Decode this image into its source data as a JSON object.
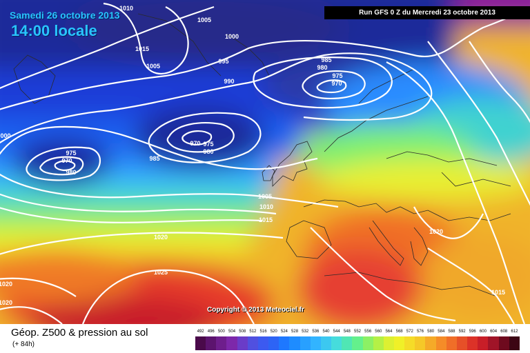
{
  "header": {
    "date_title": "Samedi 26 octobre 2013",
    "time_title": "14:00 locale",
    "run_info": "Run GFS 0 Z du Mercredi 23 octobre 2013"
  },
  "copyright": "Copyright © 2013 Meteociel.fr",
  "footer": {
    "product_title": "Géop. Z500 & pression au sol",
    "forecast_hour": "(+ 84h)"
  },
  "scale": {
    "labels": [
      "492",
      "496",
      "500",
      "504",
      "508",
      "512",
      "516",
      "520",
      "524",
      "528",
      "532",
      "536",
      "540",
      "544",
      "548",
      "552",
      "556",
      "560",
      "564",
      "568",
      "572",
      "576",
      "580",
      "584",
      "588",
      "592",
      "596",
      "600",
      "604",
      "608",
      "612"
    ],
    "colors": [
      "#4a0a4a",
      "#5c146e",
      "#6e1e8c",
      "#7d28aa",
      "#6a3cc8",
      "#5050e0",
      "#3c5af0",
      "#2d64f5",
      "#1e78ff",
      "#1e8cff",
      "#28a0ff",
      "#32b4ff",
      "#3cc8f0",
      "#46dcdc",
      "#50e6b4",
      "#64f08c",
      "#8cf064",
      "#b4f046",
      "#dcf032",
      "#f0f028",
      "#f5dc28",
      "#f5c828",
      "#f5aa28",
      "#f58c28",
      "#f06e28",
      "#e65028",
      "#dc3228",
      "#c81e28",
      "#a01428",
      "#6e0a1e",
      "#3c0514"
    ]
  },
  "isobars": [
    {
      "label": "1010"
    },
    {
      "label": "1005"
    },
    {
      "label": "1000"
    },
    {
      "label": "1015"
    },
    {
      "label": "1005"
    },
    {
      "label": "995"
    },
    {
      "label": "990"
    },
    {
      "label": "985"
    },
    {
      "label": "980"
    },
    {
      "label": "975"
    },
    {
      "label": "970"
    },
    {
      "label": "970"
    },
    {
      "label": "975"
    },
    {
      "label": "980"
    },
    {
      "label": "985"
    },
    {
      "label": "975"
    },
    {
      "label": "970"
    },
    {
      "label": "980"
    },
    {
      "label": "000"
    },
    {
      "label": "1005"
    },
    {
      "label": "1010"
    },
    {
      "label": "1015"
    },
    {
      "label": "1020"
    },
    {
      "label": "1020"
    },
    {
      "label": "1025"
    },
    {
      "label": "1020"
    },
    {
      "label": "1020"
    },
    {
      "label": "1015"
    }
  ]
}
